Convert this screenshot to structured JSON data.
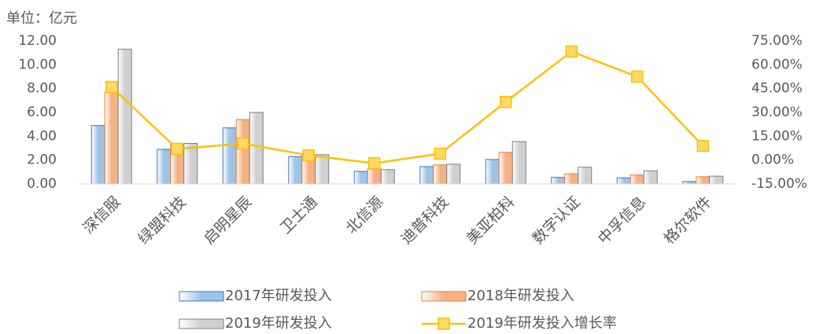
{
  "chart_data": {
    "type": "bar_line",
    "y_unit_label": "单位：亿元",
    "categories": [
      "深信服",
      "绿盟科技",
      "启明星辰",
      "卫士通",
      "北信源",
      "迪普科技",
      "美亚柏科",
      "数字认证",
      "中孚信息",
      "格尔软件"
    ],
    "series": [
      {
        "name": "2017年研发投入",
        "color": "#9dc3e6",
        "border": "#4472c4",
        "type": "bar",
        "values": [
          4.9,
          2.9,
          4.7,
          2.3,
          1.05,
          1.45,
          2.05,
          0.55,
          0.5,
          0.2
        ]
      },
      {
        "name": "2018年研发投入",
        "color": "#f4b183",
        "border": "#ed7d31",
        "type": "bar",
        "values": [
          7.7,
          3.3,
          5.4,
          2.4,
          1.25,
          1.6,
          2.65,
          0.85,
          0.75,
          0.6
        ]
      },
      {
        "name": "2019年研发投入",
        "color": "#d0d0d0",
        "border": "#7f7f7f",
        "type": "bar",
        "values": [
          11.3,
          3.4,
          6.0,
          2.45,
          1.2,
          1.65,
          3.55,
          1.4,
          1.1,
          0.65
        ]
      },
      {
        "name": "2019年研发投入增长率",
        "color": "#ffc000",
        "marker_color": "#ffd966",
        "type": "line",
        "axis": "y2",
        "values": [
          46,
          7,
          10.4,
          3,
          -2,
          4,
          36.6,
          68.3,
          52.5,
          8.9
        ]
      }
    ],
    "ylim": [
      0,
      12
    ],
    "yticks": [
      {
        "value": 0,
        "label": "0.00"
      },
      {
        "value": 2,
        "label": "2.00"
      },
      {
        "value": 4,
        "label": "4.00"
      },
      {
        "value": 6,
        "label": "6.00"
      },
      {
        "value": 8,
        "label": "8.00"
      },
      {
        "value": 10,
        "label": "10.00"
      },
      {
        "value": 12,
        "label": "12.00"
      }
    ],
    "y2lim": [
      -15,
      75
    ],
    "y2ticks": [
      {
        "value": -15,
        "label": "-15.00%"
      },
      {
        "value": 0,
        "label": "0.00%"
      },
      {
        "value": 15,
        "label": "15.00%"
      },
      {
        "value": 30,
        "label": "30.00%"
      },
      {
        "value": 45,
        "label": "45.00%"
      },
      {
        "value": 60,
        "label": "60.00%"
      },
      {
        "value": 75,
        "label": "75.00%"
      }
    ],
    "grid": false
  }
}
